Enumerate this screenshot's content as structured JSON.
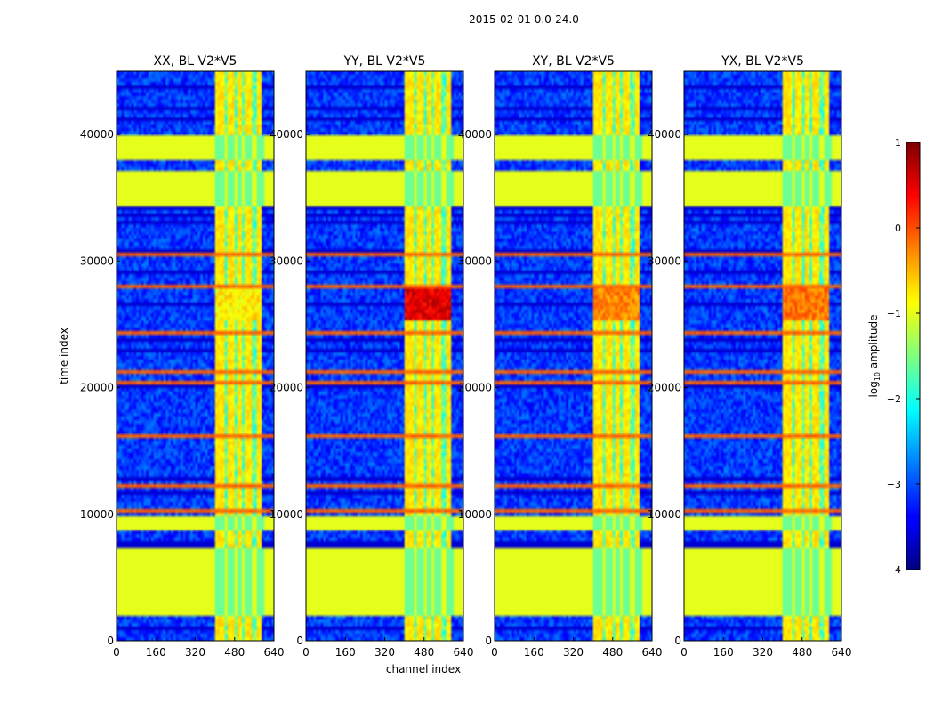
{
  "figure": {
    "suptitle": "2015-02-01 0.0-24.0"
  },
  "chart_data": {
    "type": "heatmap",
    "layout": "1x4 panels with shared colorbar",
    "xlabel": "channel index",
    "ylabel": "time index",
    "xlim": [
      0,
      640
    ],
    "ylim": [
      0,
      45000
    ],
    "x_ticks": [
      0,
      160,
      320,
      480,
      640
    ],
    "y_ticks": [
      0,
      10000,
      20000,
      30000,
      40000
    ],
    "panels": [
      {
        "title": "XX, BL V2*V5",
        "peak_level": -0.5
      },
      {
        "title": "YY, BL V2*V5",
        "peak_level": 0.8
      },
      {
        "title": "XY, BL V2*V5",
        "peak_level": 0.0
      },
      {
        "title": "YX, BL V2*V5",
        "peak_level": 0.1
      }
    ],
    "colorbar": {
      "label": "log10 amplitude",
      "label_main": "log",
      "label_sub": "10",
      "label_rest": " amplitude",
      "range": [
        -4,
        1
      ],
      "ticks": [
        "1",
        "0",
        "−1",
        "−2",
        "−3",
        "−4"
      ],
      "colormap": "jet"
    },
    "structure": {
      "flagged_time_blocks": [
        [
          2000,
          7200
        ],
        [
          8700,
          9800
        ],
        [
          34400,
          37000
        ],
        [
          38100,
          40000
        ]
      ],
      "flagged_value": -1,
      "bright_channel_band": [
        400,
        590
      ],
      "rfi_channel_columns": [
        410,
        430,
        455,
        470,
        500,
        530,
        545,
        575,
        590
      ],
      "rfi_time_rows": [
        7300,
        10200,
        12300,
        16100,
        20500,
        21200,
        24300,
        28000,
        30500,
        33200,
        34300
      ],
      "bright_event_time": [
        25300,
        28000
      ]
    }
  }
}
